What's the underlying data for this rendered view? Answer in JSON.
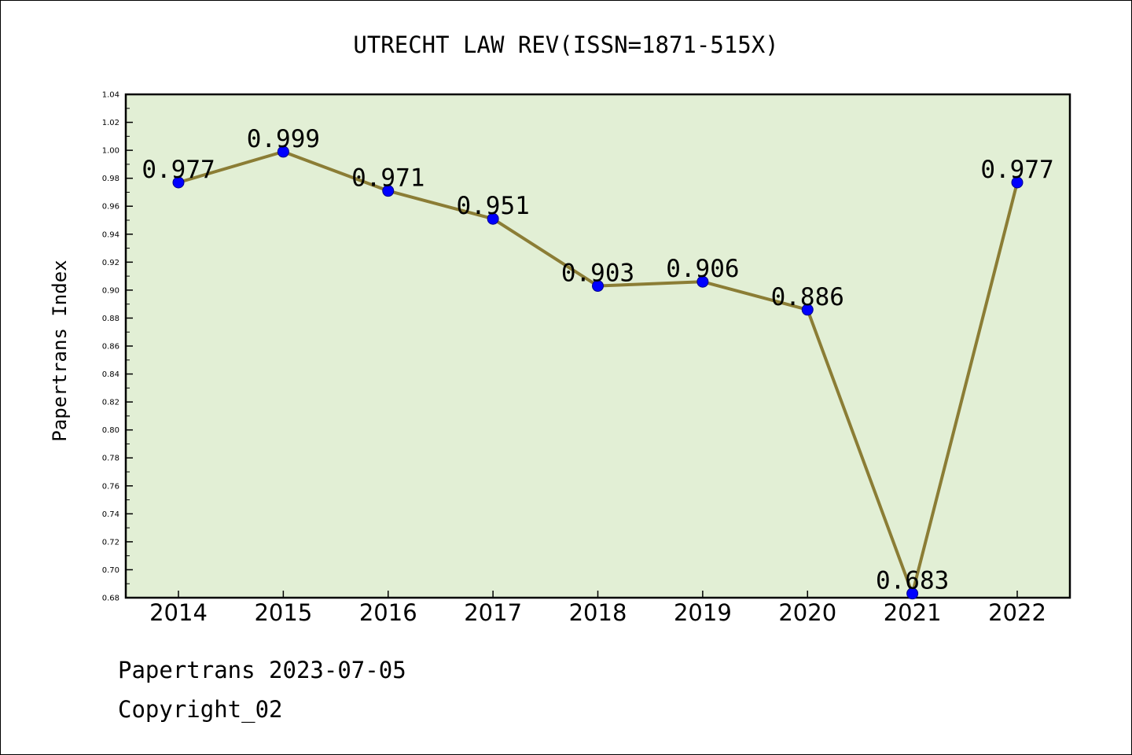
{
  "chart_data": {
    "type": "line",
    "title": "UTRECHT LAW REV(ISSN=1871-515X)",
    "xlabel": "",
    "ylabel": "Papertrans Index",
    "categories": [
      "2014",
      "2015",
      "2016",
      "2017",
      "2018",
      "2019",
      "2020",
      "2021",
      "2022"
    ],
    "series": [
      {
        "values": [
          0.977,
          0.999,
          0.971,
          0.951,
          0.903,
          0.906,
          0.886,
          0.683,
          0.977
        ],
        "labels": [
          "0.977",
          "0.999",
          "0.971",
          "0.951",
          "0.903",
          "0.906",
          "0.886",
          "0.683",
          "0.977"
        ],
        "line_color": "#8b7d35",
        "marker_color": "#0000ff"
      }
    ],
    "ylim": [
      0.68,
      1.04
    ],
    "yticks": [
      "0.68",
      "0.70",
      "0.72",
      "0.74",
      "0.76",
      "0.78",
      "0.80",
      "0.82",
      "0.84",
      "0.86",
      "0.88",
      "0.90",
      "0.92",
      "0.94",
      "0.96",
      "0.98",
      "1.00",
      "1.02",
      "1.04"
    ],
    "plot_background": "#e2efd5",
    "grid": false,
    "legend": "none"
  },
  "footer": {
    "line1": "Papertrans 2023-07-05",
    "line2": "Copyright_02"
  }
}
